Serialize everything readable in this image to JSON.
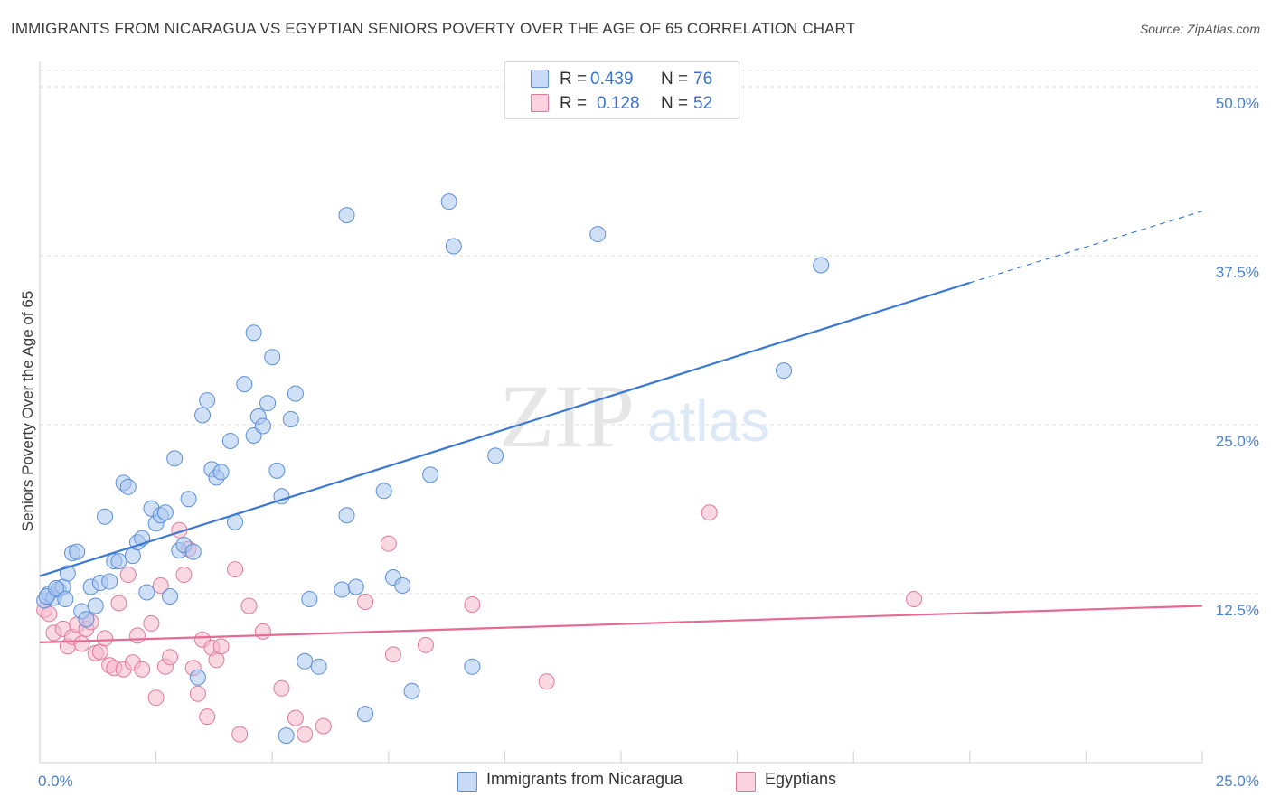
{
  "title": "IMMIGRANTS FROM NICARAGUA VS EGYPTIAN SENIORS POVERTY OVER THE AGE OF 65 CORRELATION CHART",
  "source": "Source: ZipAtlas.com",
  "watermark": {
    "zip": "ZIP",
    "atlas": "atlas"
  },
  "legend": {
    "rows": [
      {
        "r_label": "R =",
        "r_value": "0.439",
        "n_label": "N =",
        "n_value": "76",
        "color": "#a9c6ef"
      },
      {
        "r_label": "R =",
        "r_value": "0.128",
        "n_label": "N =",
        "n_value": "52",
        "color": "#f6b8cb"
      }
    ]
  },
  "bottom_legend": [
    {
      "label": "Immigrants from Nicaragua",
      "color": "#a9c6ef"
    },
    {
      "label": "Egyptians",
      "color": "#f6b8cb"
    }
  ],
  "colors": {
    "blue_fill": "#a9c6ef",
    "blue_stroke": "#5b8fd8",
    "blue_line": "#3a78d4",
    "pink_fill": "#f6b8cb",
    "pink_stroke": "#e07a9d",
    "pink_line": "#e56a94",
    "grid": "#dcdcdc",
    "tick_text": "#4a7fd0"
  },
  "chart_data": {
    "type": "scatter",
    "title": "IMMIGRANTS FROM NICARAGUA VS EGYPTIAN SENIORS POVERTY OVER THE AGE OF 65 CORRELATION CHART",
    "xlabel": "",
    "ylabel": "Seniors Poverty Over the Age of 65",
    "xlim": [
      0,
      25
    ],
    "ylim": [
      0,
      50
    ],
    "x_tick_labels": [
      "0.0%",
      "25.0%"
    ],
    "y_ticks": [
      12.5,
      25.0,
      37.5,
      50.0
    ],
    "y_tick_labels": [
      "12.5%",
      "25.0%",
      "37.5%",
      "50.0%"
    ],
    "grid": true,
    "legend_position": "top-center",
    "series": [
      {
        "name": "Immigrants from Nicaragua",
        "R": 0.439,
        "N": 76,
        "trend": {
          "x0": 0,
          "y0": 13.8,
          "x1": 20,
          "y1": 35.5,
          "dashed_to_x": 25,
          "dashed_to_y": 40.8
        },
        "points": [
          [
            0.1,
            12.0
          ],
          [
            0.2,
            12.5
          ],
          [
            0.3,
            12.2
          ],
          [
            0.4,
            12.8
          ],
          [
            0.5,
            13.0
          ],
          [
            0.6,
            14.0
          ],
          [
            0.7,
            15.5
          ],
          [
            0.8,
            15.6
          ],
          [
            0.9,
            11.2
          ],
          [
            1.0,
            10.6
          ],
          [
            1.1,
            13.0
          ],
          [
            1.2,
            11.6
          ],
          [
            1.3,
            13.3
          ],
          [
            1.4,
            18.2
          ],
          [
            1.5,
            13.4
          ],
          [
            1.6,
            14.9
          ],
          [
            1.7,
            14.9
          ],
          [
            1.8,
            20.7
          ],
          [
            1.9,
            20.4
          ],
          [
            2.0,
            15.3
          ],
          [
            2.1,
            16.3
          ],
          [
            2.2,
            16.6
          ],
          [
            2.3,
            12.6
          ],
          [
            2.4,
            18.8
          ],
          [
            2.5,
            17.7
          ],
          [
            2.6,
            18.3
          ],
          [
            2.7,
            18.5
          ],
          [
            2.8,
            12.3
          ],
          [
            2.9,
            22.5
          ],
          [
            3.0,
            15.7
          ],
          [
            3.1,
            16.1
          ],
          [
            3.2,
            19.5
          ],
          [
            3.3,
            15.6
          ],
          [
            3.4,
            6.3
          ],
          [
            3.5,
            25.7
          ],
          [
            3.6,
            26.8
          ],
          [
            3.7,
            21.7
          ],
          [
            3.8,
            21.1
          ],
          [
            3.9,
            21.5
          ],
          [
            4.1,
            23.8
          ],
          [
            4.2,
            17.8
          ],
          [
            4.4,
            28.0
          ],
          [
            4.6,
            24.2
          ],
          [
            4.6,
            31.8
          ],
          [
            4.7,
            25.6
          ],
          [
            4.8,
            24.9
          ],
          [
            4.9,
            26.6
          ],
          [
            5.0,
            30.0
          ],
          [
            5.1,
            21.6
          ],
          [
            5.2,
            19.7
          ],
          [
            5.3,
            2.0
          ],
          [
            5.4,
            25.4
          ],
          [
            5.5,
            27.3
          ],
          [
            5.7,
            7.5
          ],
          [
            5.8,
            12.1
          ],
          [
            6.0,
            7.1
          ],
          [
            6.5,
            12.8
          ],
          [
            6.6,
            18.3
          ],
          [
            6.6,
            40.5
          ],
          [
            6.8,
            13.0
          ],
          [
            7.0,
            3.6
          ],
          [
            7.4,
            20.1
          ],
          [
            7.6,
            13.7
          ],
          [
            7.8,
            13.1
          ],
          [
            8.0,
            5.3
          ],
          [
            8.4,
            21.3
          ],
          [
            8.8,
            41.5
          ],
          [
            8.9,
            38.2
          ],
          [
            9.3,
            7.1
          ],
          [
            9.8,
            22.7
          ],
          [
            12.0,
            39.1
          ],
          [
            16.0,
            29.0
          ],
          [
            16.8,
            36.8
          ],
          [
            0.15,
            12.3
          ],
          [
            0.35,
            12.9
          ],
          [
            0.55,
            12.1
          ]
        ]
      },
      {
        "name": "Egyptians",
        "R": 0.128,
        "N": 52,
        "trend": {
          "x0": 0,
          "y0": 8.9,
          "x1": 25,
          "y1": 11.6
        },
        "points": [
          [
            0.1,
            11.3
          ],
          [
            0.2,
            11.0
          ],
          [
            0.3,
            9.6
          ],
          [
            0.5,
            9.9
          ],
          [
            0.6,
            8.6
          ],
          [
            0.7,
            9.3
          ],
          [
            0.8,
            10.2
          ],
          [
            0.9,
            8.8
          ],
          [
            1.0,
            9.9
          ],
          [
            1.1,
            10.4
          ],
          [
            1.2,
            8.1
          ],
          [
            1.3,
            8.2
          ],
          [
            1.4,
            9.2
          ],
          [
            1.5,
            7.2
          ],
          [
            1.6,
            7.0
          ],
          [
            1.7,
            11.8
          ],
          [
            1.8,
            6.9
          ],
          [
            1.9,
            13.9
          ],
          [
            2.0,
            7.4
          ],
          [
            2.1,
            9.4
          ],
          [
            2.2,
            6.9
          ],
          [
            2.4,
            10.3
          ],
          [
            2.5,
            4.8
          ],
          [
            2.6,
            13.1
          ],
          [
            2.7,
            7.1
          ],
          [
            2.8,
            7.8
          ],
          [
            3.0,
            17.2
          ],
          [
            3.1,
            13.9
          ],
          [
            3.2,
            15.8
          ],
          [
            3.3,
            7.0
          ],
          [
            3.4,
            5.1
          ],
          [
            3.5,
            9.1
          ],
          [
            3.6,
            3.4
          ],
          [
            3.7,
            8.5
          ],
          [
            3.8,
            7.6
          ],
          [
            3.9,
            8.6
          ],
          [
            4.2,
            14.3
          ],
          [
            4.3,
            2.1
          ],
          [
            4.5,
            11.6
          ],
          [
            4.8,
            9.7
          ],
          [
            5.2,
            5.5
          ],
          [
            5.5,
            3.3
          ],
          [
            5.7,
            2.1
          ],
          [
            6.1,
            2.7
          ],
          [
            7.0,
            11.9
          ],
          [
            7.5,
            16.2
          ],
          [
            7.6,
            8.0
          ],
          [
            8.3,
            8.7
          ],
          [
            9.3,
            11.7
          ],
          [
            10.9,
            6.0
          ],
          [
            14.4,
            18.5
          ],
          [
            18.8,
            12.1
          ]
        ]
      }
    ]
  }
}
